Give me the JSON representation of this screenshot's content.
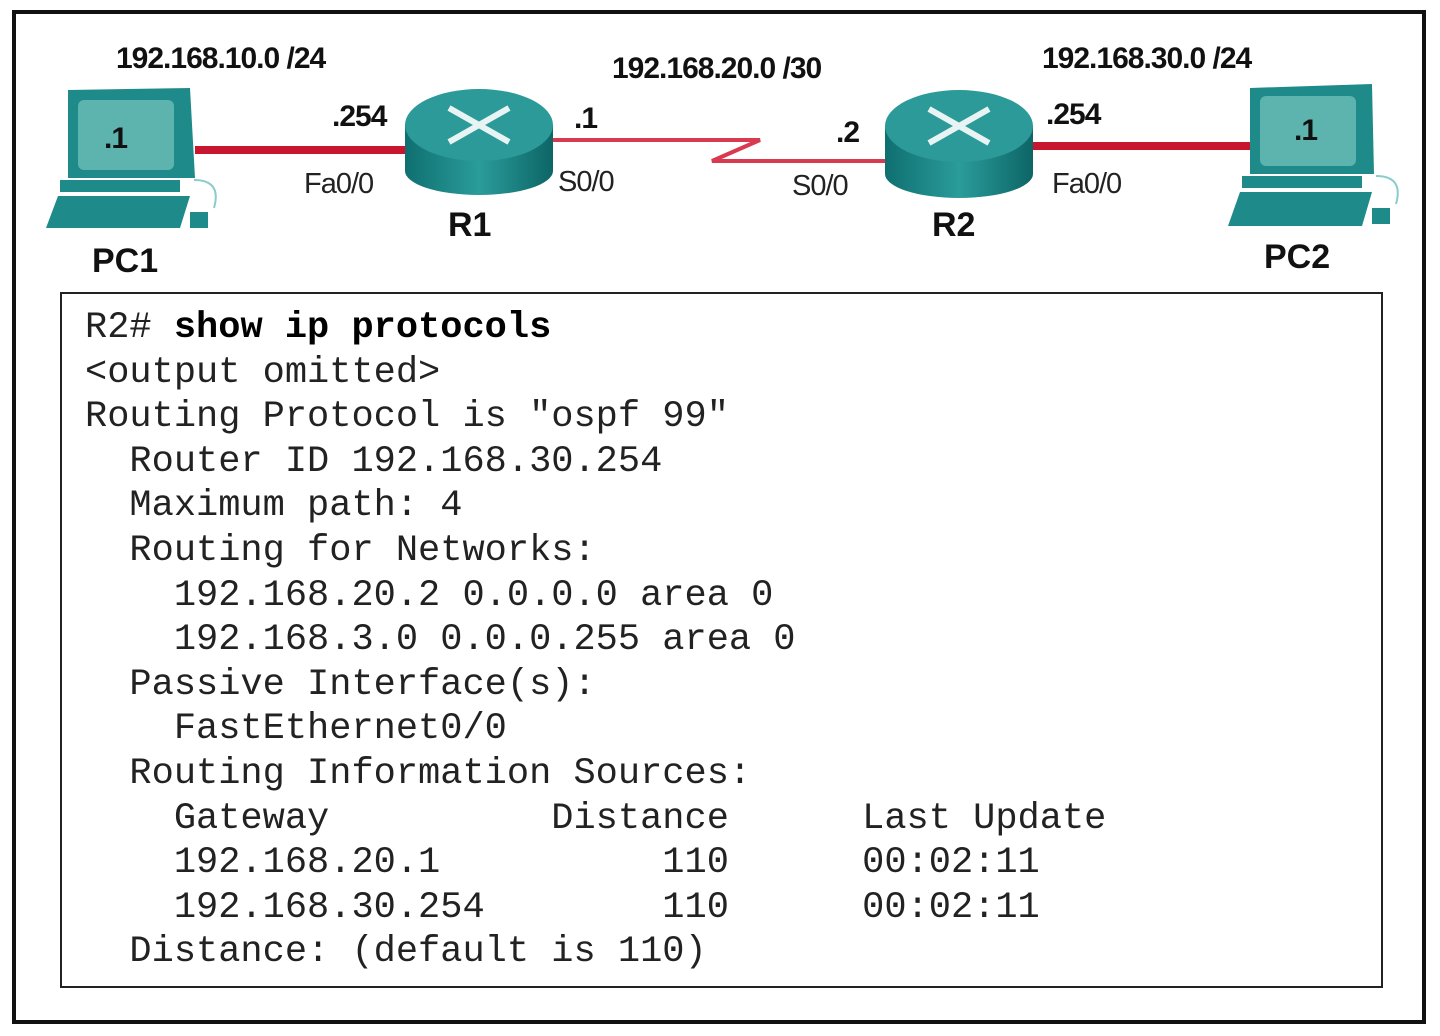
{
  "topology": {
    "networks": {
      "lan1": "192.168.10.0 /24",
      "wan": "192.168.20.0 /30",
      "lan2": "192.168.30.0 /24"
    },
    "devices": {
      "pc1": {
        "name": "PC1",
        "host": ".1"
      },
      "r1": {
        "name": "R1",
        "fa_ip": ".254",
        "fa_if": "Fa0/0",
        "s_ip": ".1",
        "s_if": "S0/0"
      },
      "r2": {
        "name": "R2",
        "s_ip": ".2",
        "s_if": "S0/0",
        "fa_ip": ".254",
        "fa_if": "Fa0/0"
      },
      "pc2": {
        "name": "PC2",
        "host": ".1"
      }
    },
    "colors": {
      "device": "#1f8a8a",
      "link": "#d0203a"
    }
  },
  "cli": {
    "prompt": "R2# ",
    "command": "show ip protocols",
    "lines": [
      "<output omitted>",
      "Routing Protocol is \"ospf 99\"",
      "  Router ID 192.168.30.254",
      "  Maximum path: 4",
      "  Routing for Networks:",
      "    192.168.20.2 0.0.0.0 area 0",
      "    192.168.3.0 0.0.0.255 area 0",
      "  Passive Interface(s):",
      "    FastEthernet0/0",
      "  Routing Information Sources:",
      "    Gateway          Distance      Last Update",
      "    192.168.20.1          110      00:02:11",
      "    192.168.30.254        110      00:02:11",
      "  Distance: (default is 110)"
    ]
  }
}
